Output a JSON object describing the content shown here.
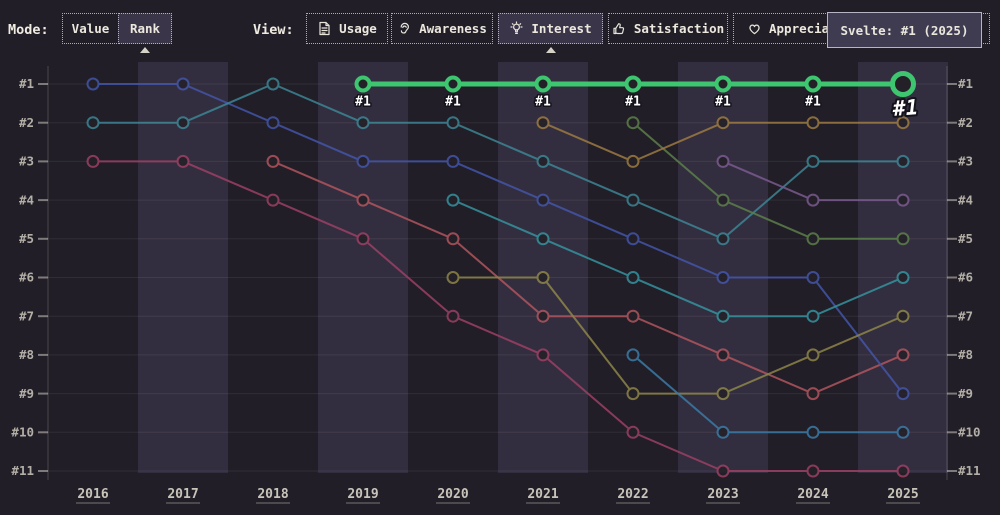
{
  "toolbar": {
    "mode_label": "Mode:",
    "mode_buttons": [
      {
        "label": "Value",
        "selected": false
      },
      {
        "label": "Rank",
        "selected": true
      }
    ],
    "view_label": "View:",
    "view_buttons": [
      {
        "label": "Usage",
        "icon": "document-icon",
        "selected": false
      },
      {
        "label": "Awareness",
        "icon": "ear-icon",
        "selected": false
      },
      {
        "label": "Interest",
        "icon": "lightbulb-icon",
        "selected": true
      },
      {
        "label": "Satisfaction",
        "icon": "thumbs-up-icon",
        "selected": false
      },
      {
        "label": "Appreciation",
        "icon": "heart-icon",
        "selected": false
      }
    ]
  },
  "tooltip": {
    "text": "Svelte: #1 (2025)"
  },
  "colors": {
    "background": "#211e27",
    "band": "#332e3f",
    "highlight_green": "#3ec56f",
    "selected_button_bg": "#3a3548",
    "tooltip_bg": "#3f3b51",
    "tooltip_border": "#b7b4c6",
    "axis_label": "#b3afa6",
    "year_label": "#c8c4ba"
  },
  "chart_data": {
    "type": "line",
    "subtype": "rank-bump",
    "title": "",
    "xlabel": "",
    "ylabel": "",
    "x": [
      2016,
      2017,
      2018,
      2019,
      2020,
      2021,
      2022,
      2023,
      2024,
      2025
    ],
    "rank_labels": [
      "#1",
      "#2",
      "#3",
      "#4",
      "#5",
      "#6",
      "#7",
      "#8",
      "#9",
      "#10",
      "#11"
    ],
    "grid": true,
    "legend": false,
    "highlighted_series_tooltip": "Svelte: #1 (2025)",
    "series": [
      {
        "name": "crimson-line",
        "color": "#9c4064",
        "points": [
          [
            2016,
            3
          ],
          [
            2017,
            3
          ],
          [
            2018,
            4
          ],
          [
            2019,
            5
          ],
          [
            2020,
            7
          ],
          [
            2021,
            8
          ],
          [
            2022,
            10
          ],
          [
            2023,
            11
          ],
          [
            2024,
            11
          ],
          [
            2025,
            11
          ]
        ]
      },
      {
        "name": "red-line",
        "color": "#b0555e",
        "points": [
          [
            2018,
            3
          ],
          [
            2019,
            4
          ],
          [
            2020,
            5
          ],
          [
            2021,
            7
          ],
          [
            2022,
            7
          ],
          [
            2023,
            8
          ],
          [
            2024,
            9
          ],
          [
            2025,
            8
          ]
        ]
      },
      {
        "name": "indigo-line",
        "color": "#4355a8",
        "points": [
          [
            2016,
            1
          ],
          [
            2017,
            1
          ],
          [
            2018,
            2
          ],
          [
            2019,
            3
          ],
          [
            2020,
            3
          ],
          [
            2021,
            4
          ],
          [
            2022,
            5
          ],
          [
            2023,
            6
          ],
          [
            2024,
            6
          ],
          [
            2025,
            9
          ]
        ]
      },
      {
        "name": "teal-line",
        "color": "#3d8594",
        "points": [
          [
            2016,
            2
          ],
          [
            2017,
            2
          ],
          [
            2018,
            1
          ],
          [
            2019,
            2
          ],
          [
            2020,
            2
          ],
          [
            2021,
            3
          ],
          [
            2022,
            4
          ],
          [
            2023,
            5
          ],
          [
            2024,
            3
          ],
          [
            2025,
            3
          ]
        ]
      },
      {
        "name": "cyan-teal-line",
        "color": "#35929e",
        "points": [
          [
            2020,
            4
          ],
          [
            2021,
            5
          ],
          [
            2022,
            6
          ],
          [
            2023,
            7
          ],
          [
            2024,
            7
          ],
          [
            2025,
            6
          ]
        ]
      },
      {
        "name": "olive-line",
        "color": "#8d8549",
        "points": [
          [
            2020,
            6
          ],
          [
            2021,
            6
          ],
          [
            2022,
            9
          ],
          [
            2023,
            9
          ],
          [
            2024,
            8
          ],
          [
            2025,
            7
          ]
        ]
      },
      {
        "name": "steel-blue-line",
        "color": "#3b7aa6",
        "points": [
          [
            2022,
            8
          ],
          [
            2023,
            10
          ],
          [
            2024,
            10
          ],
          [
            2025,
            10
          ]
        ]
      },
      {
        "name": "olive-green-line",
        "color": "#5c7f4a",
        "points": [
          [
            2022,
            2
          ],
          [
            2023,
            4
          ],
          [
            2024,
            5
          ],
          [
            2025,
            5
          ]
        ]
      },
      {
        "name": "brown-line",
        "color": "#9c7a42",
        "points": [
          [
            2021,
            2
          ],
          [
            2022,
            3
          ],
          [
            2023,
            2
          ],
          [
            2024,
            2
          ],
          [
            2025,
            2
          ]
        ]
      },
      {
        "name": "purple-line",
        "color": "#7a5a8e",
        "points": [
          [
            2023,
            3
          ],
          [
            2024,
            4
          ],
          [
            2025,
            4
          ]
        ]
      },
      {
        "name": "svelte-line",
        "color": "#3ec56f",
        "highlight": true,
        "points": [
          [
            2019,
            1
          ],
          [
            2020,
            1
          ],
          [
            2021,
            1
          ],
          [
            2022,
            1
          ],
          [
            2023,
            1
          ],
          [
            2024,
            1
          ],
          [
            2025,
            1
          ]
        ],
        "point_labels": [
          "#1",
          "#1",
          "#1",
          "#1",
          "#1",
          "#1",
          "#1"
        ]
      }
    ]
  }
}
